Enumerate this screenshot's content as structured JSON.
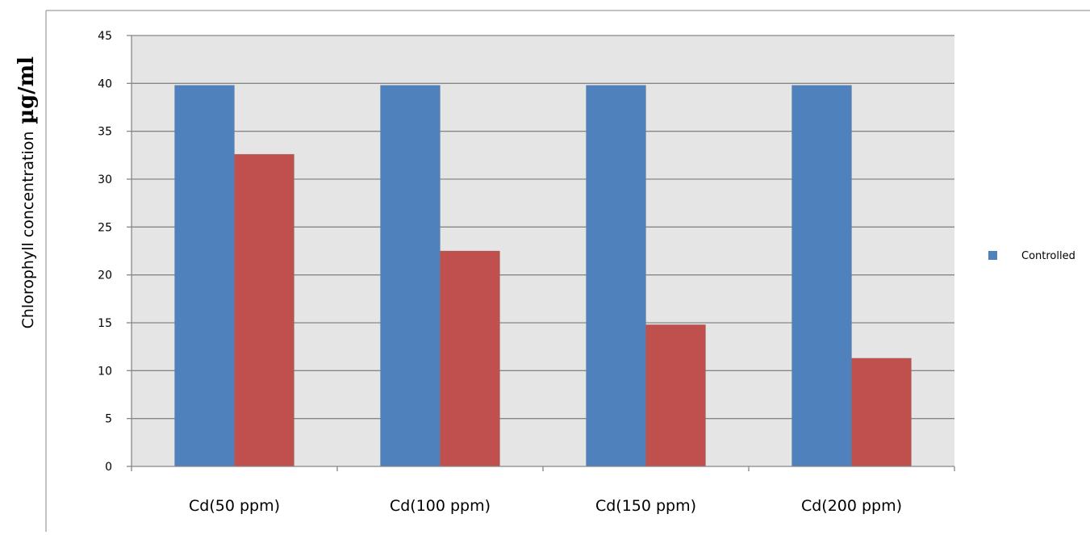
{
  "chart_data": {
    "type": "bar",
    "title": "",
    "xlabel": "",
    "ylabel": "Chlorophyll  concentration",
    "ylabel_unit": "µg/ml",
    "categories": [
      "Cd(50 ppm)",
      "Cd(100 ppm)",
      "Cd(150 ppm)",
      "Cd(200 ppm)"
    ],
    "series": [
      {
        "name": "Controlled",
        "color": "#4f81bd",
        "values": [
          39.8,
          39.8,
          39.8,
          39.8
        ]
      },
      {
        "color": "#c0504d",
        "values": [
          32.6,
          22.5,
          14.8,
          11.3
        ]
      }
    ],
    "ylim": [
      0,
      45
    ],
    "yticks": [
      0,
      5,
      10,
      15,
      20,
      25,
      30,
      35,
      40,
      45
    ],
    "grid": true,
    "legend_position": "right",
    "plot_background": "#e5e5e5"
  }
}
